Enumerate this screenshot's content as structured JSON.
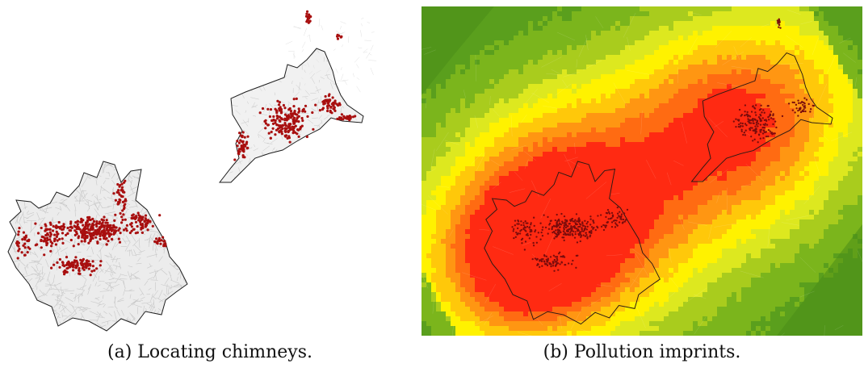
{
  "captions": {
    "a": "(a) Locating chimneys.",
    "b": "(b) Pollution imprints."
  },
  "colors": {
    "chimney": "#a80f0f",
    "boundary": "#1e1e1e",
    "streets": "#c8c8c8",
    "heat_scale": [
      "#5a9f1d",
      "#7bb51c",
      "#a9cc1d",
      "#dde81f",
      "#fff200",
      "#ffc80a",
      "#ff9612",
      "#ff6b12",
      "#ff2a12"
    ]
  }
}
